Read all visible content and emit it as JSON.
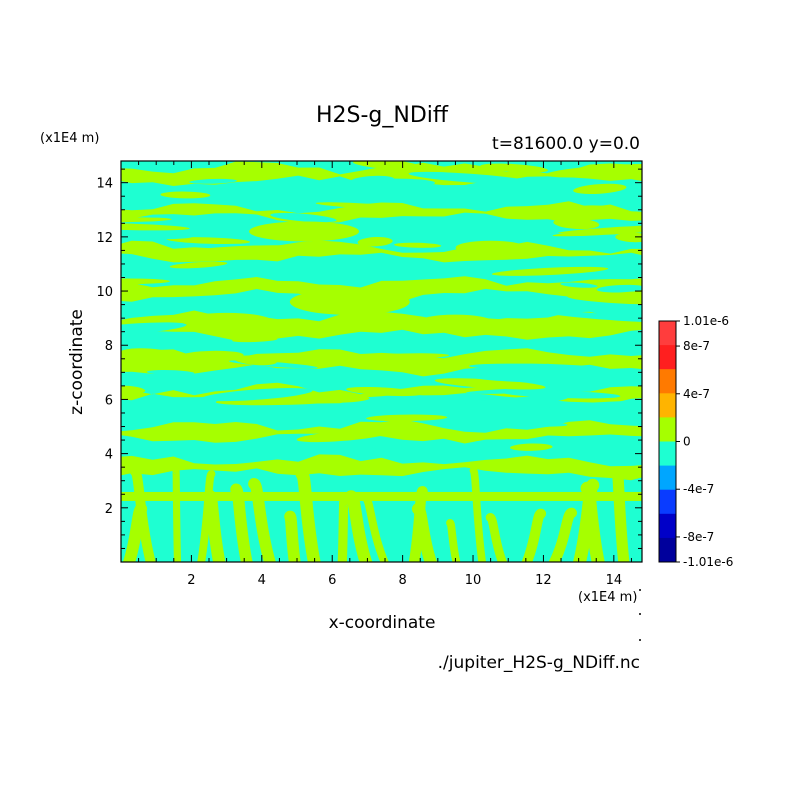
{
  "chart_data": {
    "type": "heatmap",
    "title": "H2S-g_NDiff",
    "subtitle": "t=81600.0 y=0.0",
    "xlabel": "x-coordinate",
    "ylabel": "z-coordinate",
    "x_unit": "(x1E4 m)",
    "z_unit": "(x1E4 m)",
    "xlim": [
      0,
      14.8
    ],
    "ylim": [
      0,
      14.8
    ],
    "x_ticks": [
      "2",
      "4",
      "6",
      "8",
      "10",
      "12",
      "14"
    ],
    "y_ticks": [
      "2",
      "4",
      "6",
      "8",
      "10",
      "12",
      "14"
    ],
    "x_tick_values": [
      2,
      4,
      6,
      8,
      10,
      12,
      14
    ],
    "y_tick_values": [
      2,
      4,
      6,
      8,
      10,
      12,
      14
    ],
    "grid": false,
    "source_file": "./jupiter_H2S-g_NDiff.nc",
    "colorbar": {
      "range": [
        -1.01e-06,
        1.01e-06
      ],
      "labels": [
        {
          "text": "1.01e-6",
          "value": 1.01e-06
        },
        {
          "text": "8e-7",
          "value": 8e-07
        },
        {
          "text": "4e-7",
          "value": 4e-07
        },
        {
          "text": "0",
          "value": 0
        },
        {
          "text": "-4e-7",
          "value": -4e-07
        },
        {
          "text": "-8e-7",
          "value": -8e-07
        },
        {
          "text": "-1.01e-6",
          "value": -1.01e-06
        }
      ],
      "colors": [
        "#ff3d3d",
        "#ff1f1f",
        "#ff7a00",
        "#ffb400",
        "#a6ff00",
        "#1effd2",
        "#00a6ff",
        "#0a3cff",
        "#0000c8",
        "#00009c"
      ]
    },
    "dominant_levels": [
      {
        "range": [
          0,
          2e-07
        ],
        "color": "#a6ff00"
      },
      {
        "range": [
          -2e-07,
          0
        ],
        "color": "#1effd2"
      }
    ],
    "bands": [
      {
        "z": 14.3,
        "sign": "pos"
      },
      {
        "z": 13.6,
        "sign": "neg"
      },
      {
        "z": 12.9,
        "sign": "pos"
      },
      {
        "z": 12.2,
        "sign": "neg"
      },
      {
        "z": 11.4,
        "sign": "pos"
      },
      {
        "z": 10.8,
        "sign": "neg"
      },
      {
        "z": 10.1,
        "sign": "pos"
      },
      {
        "z": 9.4,
        "sign": "neg"
      },
      {
        "z": 8.7,
        "sign": "pos"
      },
      {
        "z": 8.0,
        "sign": "neg"
      },
      {
        "z": 7.4,
        "sign": "pos"
      },
      {
        "z": 6.8,
        "sign": "neg"
      },
      {
        "z": 6.2,
        "sign": "pos"
      },
      {
        "z": 5.5,
        "sign": "neg"
      },
      {
        "z": 4.8,
        "sign": "pos"
      },
      {
        "z": 4.2,
        "sign": "neg"
      },
      {
        "z": 3.5,
        "sign": "pos"
      },
      {
        "z": 2.8,
        "sign": "neg"
      }
    ]
  }
}
